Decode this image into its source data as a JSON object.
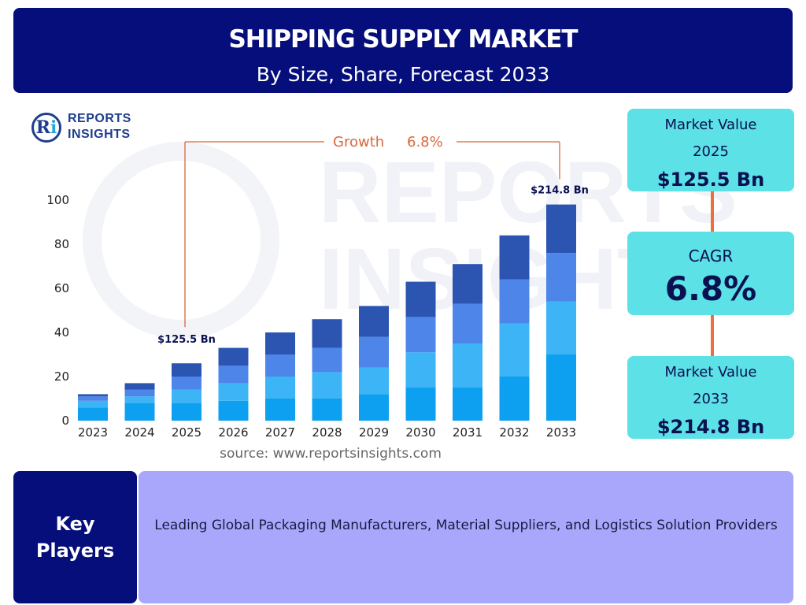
{
  "header": {
    "title": "SHIPPING SUPPLY MARKET",
    "subtitle": "By Size, Share, Forecast 2033"
  },
  "logo": {
    "line1": "REPORTS",
    "line2": "INSIGHTS",
    "mark_letters": "Ri"
  },
  "chart_data": {
    "type": "bar",
    "stacked": true,
    "categories": [
      "2023",
      "2024",
      "2025",
      "2026",
      "2027",
      "2028",
      "2029",
      "2030",
      "2031",
      "2032",
      "2033"
    ],
    "series": [
      {
        "values": [
          6,
          8,
          8,
          9,
          10,
          10,
          12,
          15,
          15,
          20,
          30
        ]
      },
      {
        "values": [
          3,
          3,
          6,
          8,
          10,
          12,
          12,
          16,
          20,
          24,
          24
        ]
      },
      {
        "values": [
          2,
          3,
          6,
          8,
          10,
          11,
          14,
          16,
          18,
          20,
          22
        ]
      },
      {
        "values": [
          1,
          3,
          6,
          8,
          10,
          13,
          14,
          16,
          18,
          20,
          22
        ]
      }
    ],
    "series_colors": [
      "#0ea0f0",
      "#3cb4f5",
      "#4d86e8",
      "#2b55b0"
    ],
    "yticks": [
      0,
      20,
      40,
      60,
      80,
      100
    ],
    "ylim": [
      0,
      100
    ],
    "annotations": {
      "label_2025": "$125.5 Bn",
      "label_2033": "$214.8 Bn",
      "growth_label": "Growth",
      "growth_value": "6.8%"
    },
    "growth_color": "#d9683a"
  },
  "source": "source: www.reportsinsights.com",
  "kpis": {
    "market_value_2025_label": "Market Value",
    "market_value_2025_year": "2025",
    "market_value_2025": "$125.5 Bn",
    "cagr_label": "CAGR",
    "cagr_value": "6.8%",
    "market_value_2033_label": "Market Value",
    "market_value_2033_year": "2033",
    "market_value_2033": "$214.8 Bn"
  },
  "key_players": {
    "label_line1": "Key",
    "label_line2": "Players",
    "text": "Leading Global Packaging Manufacturers, Material Suppliers, and Logistics Solution Providers"
  },
  "colors": {
    "header_bg": "#050e7a",
    "kpi_bg": "#5ce1e6",
    "connector": "#ee6f3e",
    "key_box_bg": "#a8a7fb"
  }
}
